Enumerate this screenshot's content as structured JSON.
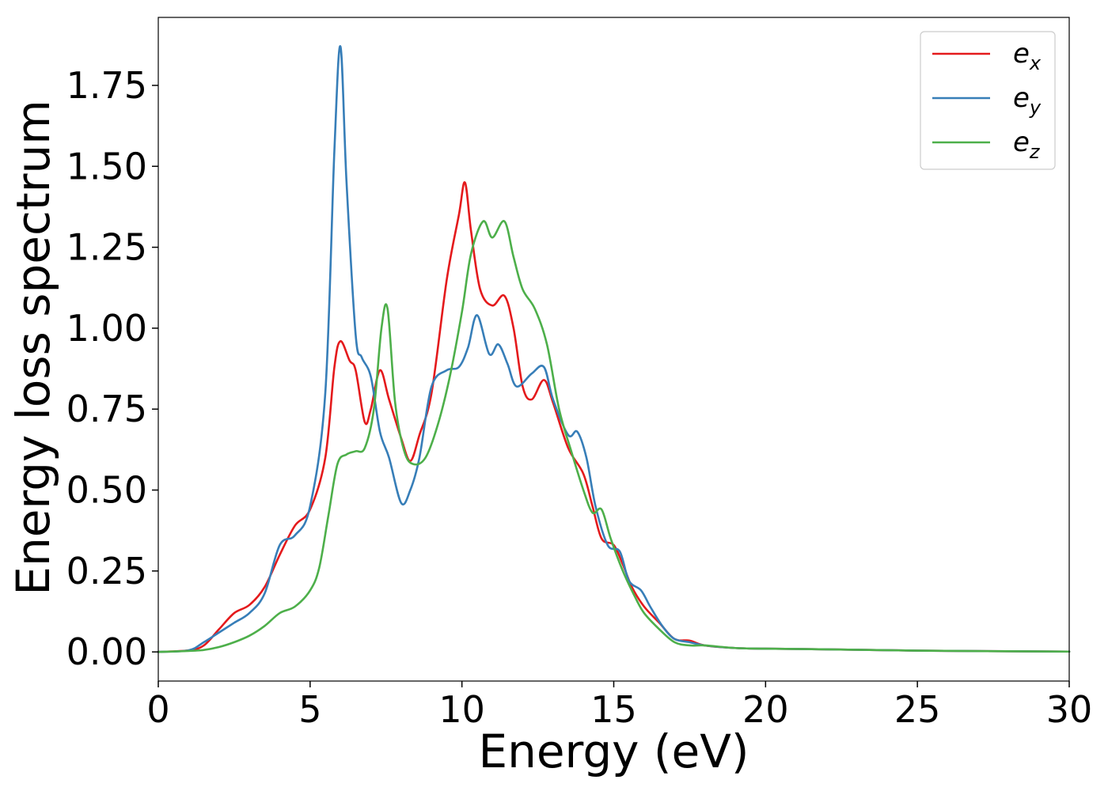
{
  "chart_data": {
    "type": "line",
    "title": "",
    "xlabel": "Energy (eV)",
    "ylabel": "Energy loss spectrum",
    "xlim": [
      0,
      30
    ],
    "ylim": [
      -0.09,
      1.96
    ],
    "xticks": [
      0,
      5,
      10,
      15,
      20,
      25,
      30
    ],
    "xtick_labels": [
      "0",
      "5",
      "10",
      "15",
      "20",
      "25",
      "30"
    ],
    "yticks": [
      0.0,
      0.25,
      0.5,
      0.75,
      1.0,
      1.25,
      1.5,
      1.75
    ],
    "ytick_labels": [
      "0.00",
      "0.25",
      "0.50",
      "0.75",
      "1.00",
      "1.25",
      "1.50",
      "1.75"
    ],
    "grid": false,
    "legend_position": "top-right",
    "series": [
      {
        "name": "e_x",
        "legend_base": "e",
        "legend_sub": "x",
        "color": "#e41a1c",
        "points": [
          [
            0,
            0
          ],
          [
            1,
            0.005
          ],
          [
            1.5,
            0.02
          ],
          [
            2,
            0.07
          ],
          [
            2.5,
            0.12
          ],
          [
            3,
            0.145
          ],
          [
            3.5,
            0.2
          ],
          [
            4,
            0.3
          ],
          [
            4.5,
            0.39
          ],
          [
            5,
            0.44
          ],
          [
            5.5,
            0.6
          ],
          [
            5.8,
            0.88
          ],
          [
            6,
            0.96
          ],
          [
            6.3,
            0.9
          ],
          [
            6.5,
            0.87
          ],
          [
            6.8,
            0.71
          ],
          [
            7,
            0.75
          ],
          [
            7.3,
            0.87
          ],
          [
            7.6,
            0.78
          ],
          [
            8,
            0.66
          ],
          [
            8.3,
            0.59
          ],
          [
            8.6,
            0.67
          ],
          [
            9,
            0.8
          ],
          [
            9.5,
            1.15
          ],
          [
            9.9,
            1.35
          ],
          [
            10.1,
            1.45
          ],
          [
            10.3,
            1.3
          ],
          [
            10.6,
            1.12
          ],
          [
            11,
            1.07
          ],
          [
            11.4,
            1.1
          ],
          [
            11.7,
            1.0
          ],
          [
            12,
            0.82
          ],
          [
            12.3,
            0.78
          ],
          [
            12.7,
            0.84
          ],
          [
            13,
            0.77
          ],
          [
            13.5,
            0.63
          ],
          [
            14,
            0.55
          ],
          [
            14.3,
            0.45
          ],
          [
            14.6,
            0.35
          ],
          [
            15,
            0.33
          ],
          [
            15.3,
            0.27
          ],
          [
            15.6,
            0.2
          ],
          [
            16,
            0.14
          ],
          [
            16.5,
            0.09
          ],
          [
            17,
            0.04
          ],
          [
            17.5,
            0.035
          ],
          [
            18,
            0.02
          ],
          [
            19,
            0.012
          ],
          [
            20,
            0.01
          ],
          [
            22,
            0.008
          ],
          [
            25,
            0.004
          ],
          [
            30,
            0.001
          ]
        ]
      },
      {
        "name": "e_y",
        "legend_base": "e",
        "legend_sub": "y",
        "color": "#377eb8",
        "points": [
          [
            0,
            0
          ],
          [
            1,
            0.005
          ],
          [
            1.5,
            0.03
          ],
          [
            2,
            0.06
          ],
          [
            2.5,
            0.09
          ],
          [
            3,
            0.12
          ],
          [
            3.5,
            0.18
          ],
          [
            4,
            0.33
          ],
          [
            4.5,
            0.36
          ],
          [
            5,
            0.45
          ],
          [
            5.5,
            0.8
          ],
          [
            5.8,
            1.55
          ],
          [
            6,
            1.87
          ],
          [
            6.2,
            1.45
          ],
          [
            6.5,
            0.98
          ],
          [
            6.7,
            0.91
          ],
          [
            7,
            0.85
          ],
          [
            7.3,
            0.68
          ],
          [
            7.6,
            0.6
          ],
          [
            8,
            0.46
          ],
          [
            8.3,
            0.5
          ],
          [
            8.6,
            0.6
          ],
          [
            9,
            0.82
          ],
          [
            9.5,
            0.87
          ],
          [
            9.9,
            0.88
          ],
          [
            10.2,
            0.94
          ],
          [
            10.5,
            1.04
          ],
          [
            10.9,
            0.92
          ],
          [
            11.2,
            0.95
          ],
          [
            11.5,
            0.89
          ],
          [
            11.8,
            0.82
          ],
          [
            12.3,
            0.86
          ],
          [
            12.7,
            0.88
          ],
          [
            13,
            0.78
          ],
          [
            13.5,
            0.67
          ],
          [
            13.8,
            0.68
          ],
          [
            14.1,
            0.6
          ],
          [
            14.4,
            0.45
          ],
          [
            14.8,
            0.33
          ],
          [
            15.2,
            0.31
          ],
          [
            15.5,
            0.22
          ],
          [
            15.9,
            0.19
          ],
          [
            16.2,
            0.14
          ],
          [
            16.6,
            0.08
          ],
          [
            17,
            0.04
          ],
          [
            17.5,
            0.03
          ],
          [
            18,
            0.02
          ],
          [
            19,
            0.012
          ],
          [
            20,
            0.01
          ],
          [
            22,
            0.008
          ],
          [
            25,
            0.004
          ],
          [
            30,
            0.001
          ]
        ]
      },
      {
        "name": "e_z",
        "legend_base": "e",
        "legend_sub": "z",
        "color": "#4daf4a",
        "points": [
          [
            0,
            0
          ],
          [
            1,
            0.003
          ],
          [
            1.5,
            0.006
          ],
          [
            2,
            0.015
          ],
          [
            2.5,
            0.03
          ],
          [
            3,
            0.05
          ],
          [
            3.5,
            0.08
          ],
          [
            4,
            0.12
          ],
          [
            4.5,
            0.14
          ],
          [
            5,
            0.19
          ],
          [
            5.3,
            0.26
          ],
          [
            5.6,
            0.42
          ],
          [
            5.9,
            0.58
          ],
          [
            6.2,
            0.61
          ],
          [
            6.5,
            0.62
          ],
          [
            6.8,
            0.63
          ],
          [
            7.1,
            0.75
          ],
          [
            7.35,
            1.0
          ],
          [
            7.55,
            1.06
          ],
          [
            7.8,
            0.77
          ],
          [
            8.1,
            0.62
          ],
          [
            8.4,
            0.58
          ],
          [
            8.8,
            0.6
          ],
          [
            9.2,
            0.7
          ],
          [
            9.6,
            0.85
          ],
          [
            10,
            1.05
          ],
          [
            10.3,
            1.23
          ],
          [
            10.7,
            1.33
          ],
          [
            11,
            1.28
          ],
          [
            11.4,
            1.33
          ],
          [
            11.7,
            1.22
          ],
          [
            12,
            1.12
          ],
          [
            12.4,
            1.06
          ],
          [
            12.8,
            0.95
          ],
          [
            13.2,
            0.75
          ],
          [
            13.6,
            0.62
          ],
          [
            14,
            0.5
          ],
          [
            14.3,
            0.43
          ],
          [
            14.6,
            0.44
          ],
          [
            14.9,
            0.35
          ],
          [
            15.3,
            0.25
          ],
          [
            15.7,
            0.17
          ],
          [
            16,
            0.12
          ],
          [
            16.5,
            0.07
          ],
          [
            17,
            0.03
          ],
          [
            17.5,
            0.02
          ],
          [
            18,
            0.02
          ],
          [
            19,
            0.012
          ],
          [
            20,
            0.01
          ],
          [
            22,
            0.008
          ],
          [
            25,
            0.004
          ],
          [
            30,
            0.001
          ]
        ]
      }
    ]
  }
}
